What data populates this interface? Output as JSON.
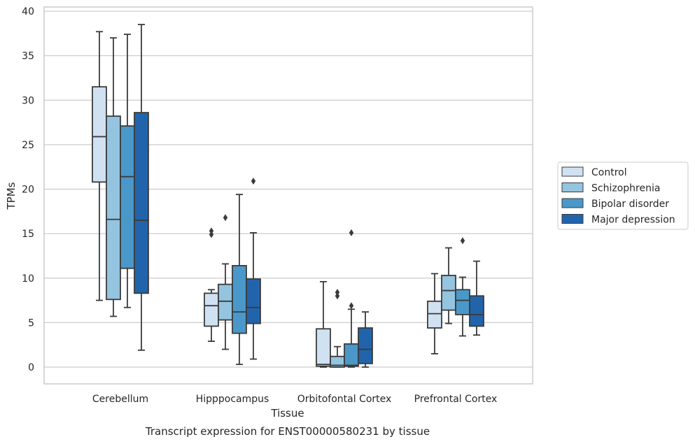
{
  "chart_data": {
    "type": "box",
    "title": "Transcript expression for ENST00000580231 by tissue",
    "xlabel": "Tissue",
    "ylabel": "TPMs",
    "ylim": [
      -1.8,
      40.4
    ],
    "yticks": [
      0,
      5,
      10,
      15,
      20,
      25,
      30,
      35,
      40
    ],
    "grid": "horizontal",
    "legend_position": "right",
    "categories": [
      "Cerebellum",
      "Hipppocampus",
      "Orbitofontal Cortex",
      "Prefrontal Cortex"
    ],
    "series": [
      {
        "name": "Control",
        "color": "#d0e1f2",
        "boxes": [
          {
            "whislo": 7.5,
            "q1": 20.8,
            "med": 25.9,
            "q3": 31.5,
            "whishi": 37.7,
            "fliers": []
          },
          {
            "whislo": 2.9,
            "q1": 4.6,
            "med": 6.9,
            "q3": 8.3,
            "whishi": 8.7,
            "fliers": [
              14.9,
              15.3
            ]
          },
          {
            "whislo": 0.0,
            "q1": 0.1,
            "med": 0.3,
            "q3": 4.3,
            "whishi": 9.6,
            "fliers": []
          },
          {
            "whislo": 1.5,
            "q1": 4.4,
            "med": 6.0,
            "q3": 7.4,
            "whishi": 10.5,
            "fliers": []
          }
        ]
      },
      {
        "name": "Schizophrenia",
        "color": "#94c4df",
        "boxes": [
          {
            "whislo": 5.7,
            "q1": 7.6,
            "med": 16.6,
            "q3": 28.2,
            "whishi": 37.0,
            "fliers": []
          },
          {
            "whislo": 2.0,
            "q1": 5.3,
            "med": 7.4,
            "q3": 9.3,
            "whishi": 11.6,
            "fliers": [
              16.8
            ]
          },
          {
            "whislo": 0.0,
            "q1": 0.0,
            "med": 0.2,
            "q3": 1.2,
            "whishi": 2.3,
            "fliers": [
              8.0,
              8.4
            ]
          },
          {
            "whislo": 4.9,
            "q1": 6.4,
            "med": 8.6,
            "q3": 10.3,
            "whishi": 13.4,
            "fliers": []
          }
        ]
      },
      {
        "name": "Bipolar disorder",
        "color": "#4a98c9",
        "boxes": [
          {
            "whislo": 6.7,
            "q1": 11.1,
            "med": 21.4,
            "q3": 27.1,
            "whishi": 37.4,
            "fliers": []
          },
          {
            "whislo": 0.3,
            "q1": 3.8,
            "med": 6.2,
            "q3": 11.4,
            "whishi": 19.4,
            "fliers": []
          },
          {
            "whislo": 0.0,
            "q1": 0.1,
            "med": 0.2,
            "q3": 2.6,
            "whishi": 6.5,
            "fliers": [
              6.9,
              15.1
            ]
          },
          {
            "whislo": 3.5,
            "q1": 5.9,
            "med": 7.5,
            "q3": 8.7,
            "whishi": 10.1,
            "fliers": [
              14.2
            ]
          }
        ]
      },
      {
        "name": "Major depression",
        "color": "#2164ab",
        "boxes": [
          {
            "whislo": 1.9,
            "q1": 8.3,
            "med": 16.5,
            "q3": 28.6,
            "whishi": 38.5,
            "fliers": []
          },
          {
            "whislo": 0.9,
            "q1": 4.9,
            "med": 6.7,
            "q3": 9.9,
            "whishi": 15.1,
            "fliers": [
              20.9
            ]
          },
          {
            "whislo": 0.0,
            "q1": 0.4,
            "med": 2.0,
            "q3": 4.4,
            "whishi": 6.2,
            "fliers": []
          },
          {
            "whislo": 3.6,
            "q1": 4.6,
            "med": 5.9,
            "q3": 8.0,
            "whishi": 11.9,
            "fliers": []
          }
        ]
      }
    ]
  }
}
